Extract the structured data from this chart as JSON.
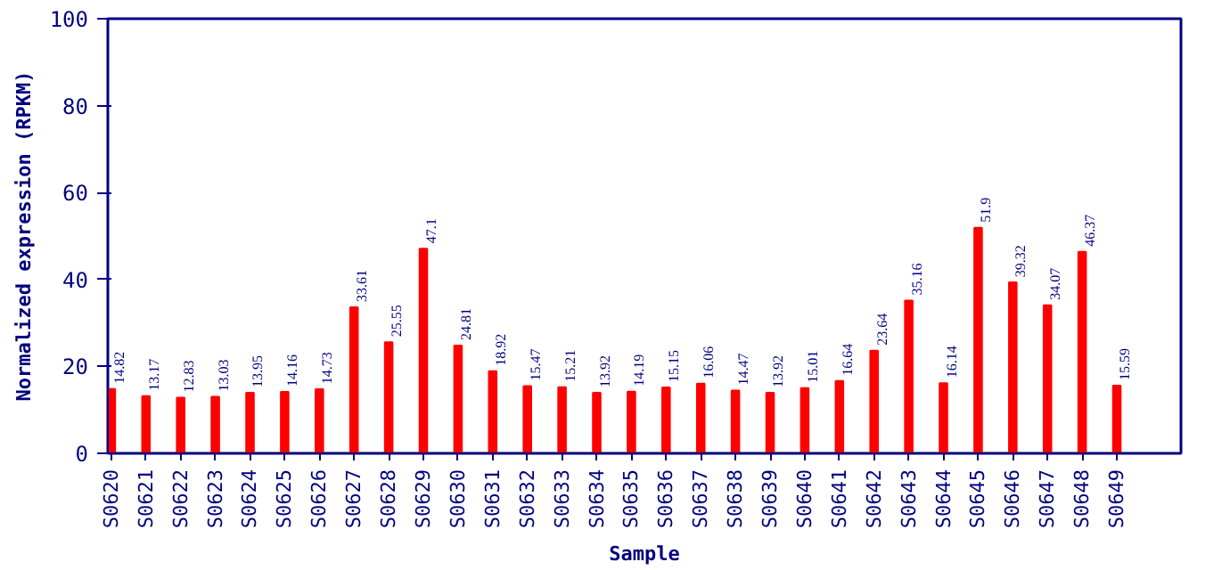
{
  "chart_data": {
    "type": "bar",
    "xlabel": "Sample",
    "ylabel": "Normalized expression (RPKM)",
    "categories": [
      "S0620",
      "S0621",
      "S0622",
      "S0623",
      "S0624",
      "S0625",
      "S0626",
      "S0627",
      "S0628",
      "S0629",
      "S0630",
      "S0631",
      "S0632",
      "S0633",
      "S0634",
      "S0635",
      "S0636",
      "S0637",
      "S0638",
      "S0639",
      "S0640",
      "S0641",
      "S0642",
      "S0643",
      "S0644",
      "S0645",
      "S0646",
      "S0647",
      "S0648",
      "S0649"
    ],
    "values": [
      14.82,
      13.17,
      12.83,
      13.03,
      13.95,
      14.16,
      14.73,
      33.61,
      25.55,
      47.1,
      24.81,
      18.92,
      15.47,
      15.21,
      13.92,
      14.19,
      15.15,
      16.06,
      14.47,
      13.92,
      15.01,
      16.64,
      23.64,
      35.16,
      16.14,
      51.9,
      39.32,
      34.07,
      46.37,
      15.59
    ],
    "color": "#ff0000",
    "ylim": [
      0,
      100
    ],
    "yticks": [
      0,
      20,
      40,
      60,
      80,
      100
    ],
    "grid": false,
    "data_labels": true
  }
}
